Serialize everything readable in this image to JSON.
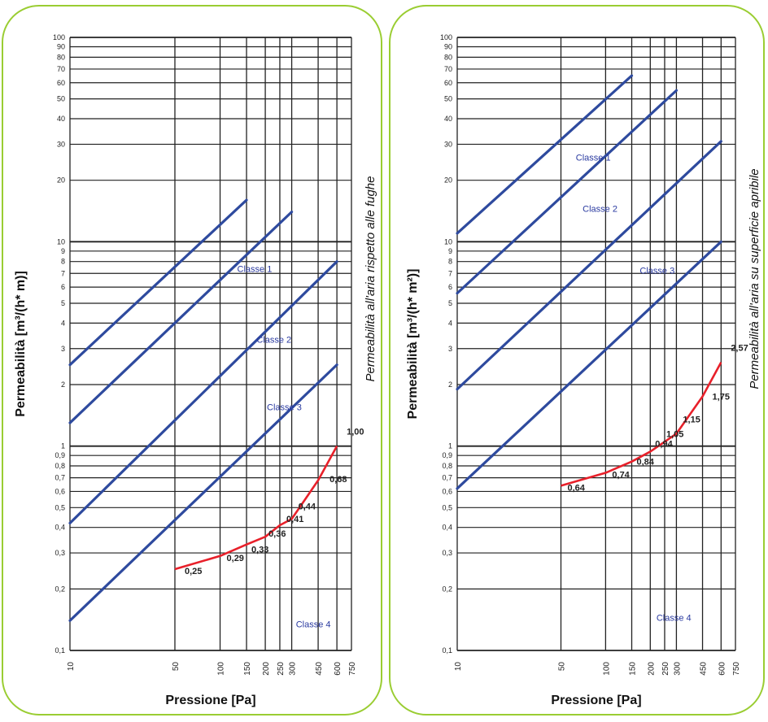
{
  "colors": {
    "border": "#9acd32",
    "class_line": "#2e4a9e",
    "product_line": "#e8202a",
    "grid": "#222222"
  },
  "chart_data": [
    {
      "type": "line",
      "xscale": "log",
      "yscale": "log",
      "xlim": [
        10,
        750
      ],
      "ylim": [
        0.1,
        100
      ],
      "xlabel": "Pressione [Pa]",
      "ylabel": "Permeabilità [m³/(h* m)]",
      "side_label": "Permeabilità all'aria rispetto alle fughe",
      "x_ticks": [
        "10",
        "50",
        "100",
        "150",
        "200",
        "250",
        "300",
        "450",
        "600",
        "750"
      ],
      "x_tick_values": [
        10,
        50,
        100,
        150,
        200,
        250,
        300,
        450,
        600,
        750
      ],
      "y_ticks": [
        "100",
        "90",
        "80",
        "70",
        "60",
        "50",
        "40",
        "30",
        "20",
        "10",
        "9",
        "8",
        "7",
        "6",
        "5",
        "4",
        "3",
        "2",
        "1",
        "0,9",
        "0,8",
        "0,7",
        "0,6",
        "0,5",
        "0,4",
        "0,3",
        "0,2",
        "0,1"
      ],
      "y_tick_values": [
        100,
        90,
        80,
        70,
        60,
        50,
        40,
        30,
        20,
        10,
        9,
        8,
        7,
        6,
        5,
        4,
        3,
        2,
        1,
        0.9,
        0.8,
        0.7,
        0.6,
        0.5,
        0.4,
        0.3,
        0.2,
        0.1
      ],
      "class_lines": [
        {
          "name": "Classe 1",
          "x": [
            10,
            150
          ],
          "y": [
            2.5,
            16
          ]
        },
        {
          "name": "Classe 2",
          "x": [
            10,
            300
          ],
          "y": [
            1.3,
            14
          ]
        },
        {
          "name": "Classe 3",
          "x": [
            10,
            600
          ],
          "y": [
            0.42,
            8
          ]
        },
        {
          "name": "Classe 4",
          "x": [
            10,
            600
          ],
          "y": [
            0.14,
            2.5
          ]
        }
      ],
      "class_labels": [
        {
          "text": "Classe 1",
          "x": 130,
          "y": 7.1
        },
        {
          "text": "Classe 2",
          "x": 175,
          "y": 3.2
        },
        {
          "text": "Classe 3",
          "x": 205,
          "y": 1.5
        },
        {
          "text": "Classe 4",
          "x": 320,
          "y": 0.13
        }
      ],
      "series": [
        {
          "x": [
            50,
            100,
            150,
            200,
            250,
            300,
            450,
            600
          ],
          "y": [
            0.25,
            0.29,
            0.33,
            0.36,
            0.41,
            0.44,
            0.68,
            1.0
          ],
          "labels": [
            "0,25",
            "0,29",
            "0,33",
            "0,36",
            "0,41",
            "0,44",
            "0,68",
            "1,00"
          ]
        }
      ]
    },
    {
      "type": "line",
      "xscale": "log",
      "yscale": "log",
      "xlim": [
        10,
        750
      ],
      "ylim": [
        0.1,
        100
      ],
      "xlabel": "Pressione [Pa]",
      "ylabel": "Permeabilità [m³/(h* m²)]",
      "side_label": "Permeabilità all'aria su superficie apribile",
      "x_ticks": [
        "10",
        "50",
        "100",
        "150",
        "200",
        "250",
        "300",
        "450",
        "600",
        "750"
      ],
      "x_tick_values": [
        10,
        50,
        100,
        150,
        200,
        250,
        300,
        450,
        600,
        750
      ],
      "y_ticks": [
        "100",
        "90",
        "80",
        "70",
        "60",
        "50",
        "40",
        "30",
        "20",
        "10",
        "9",
        "8",
        "7",
        "6",
        "5",
        "4",
        "3",
        "2",
        "1",
        "0,9",
        "0,8",
        "0,7",
        "0,6",
        "0,5",
        "0,4",
        "0,3",
        "0,2",
        "0,1"
      ],
      "y_tick_values": [
        100,
        90,
        80,
        70,
        60,
        50,
        40,
        30,
        20,
        10,
        9,
        8,
        7,
        6,
        5,
        4,
        3,
        2,
        1,
        0.9,
        0.8,
        0.7,
        0.6,
        0.5,
        0.4,
        0.3,
        0.2,
        0.1
      ],
      "class_lines": [
        {
          "name": "Classe 1",
          "x": [
            10,
            150
          ],
          "y": [
            11,
            65
          ]
        },
        {
          "name": "Classe 2",
          "x": [
            10,
            300
          ],
          "y": [
            5.6,
            55
          ]
        },
        {
          "name": "Classe 3",
          "x": [
            10,
            600
          ],
          "y": [
            1.9,
            31
          ]
        },
        {
          "name": "Classe 4",
          "x": [
            10,
            600
          ],
          "y": [
            0.62,
            10
          ]
        }
      ],
      "class_labels": [
        {
          "text": "Classe 1",
          "x": 63,
          "y": 25
        },
        {
          "text": "Classe 2",
          "x": 70,
          "y": 14
        },
        {
          "text": "Classe 3",
          "x": 170,
          "y": 7
        },
        {
          "text": "Classe 4",
          "x": 220,
          "y": 0.14
        }
      ],
      "series": [
        {
          "x": [
            50,
            100,
            150,
            200,
            250,
            300,
            450,
            600
          ],
          "y": [
            0.64,
            0.74,
            0.84,
            0.94,
            1.05,
            1.15,
            1.75,
            2.57
          ],
          "labels": [
            "0,64",
            "0,74",
            "0,84",
            "0,94",
            "1,05",
            "1,15",
            "1,75",
            "2,57"
          ]
        }
      ]
    }
  ]
}
